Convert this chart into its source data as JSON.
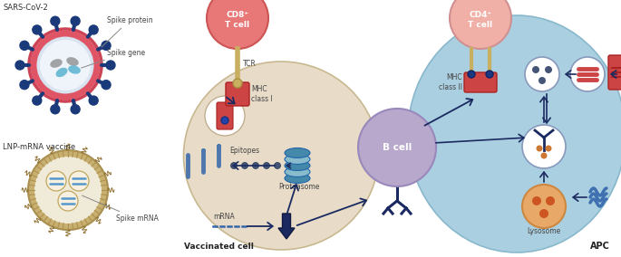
{
  "background_color": "#ffffff",
  "vaccinated_cell_color": "#e8dcc8",
  "vaccinated_cell_edge": "#c8b890",
  "apc_color": "#aacfe0",
  "apc_edge": "#88b8cc",
  "cd8_color": "#e87878",
  "cd8_edge": "#cc5555",
  "cd4_color": "#f0b0a8",
  "cd4_edge": "#d09090",
  "b_cell_color": "#b8a8cc",
  "b_cell_edge": "#9988bb",
  "lysosome_color": "#e8a868",
  "lysosome_edge": "#cc8840",
  "spike_color": "#1a3a80",
  "mrna_color": "#3366aa",
  "proteasome_color1": "#4488aa",
  "proteasome_color2": "#88bbcc",
  "red_protein_color": "#cc4444",
  "red_protein_edge": "#aa2222",
  "tcr_stalk_color": "#c8b060",
  "arrow_color": "#1a2a60",
  "blue_wave_color": "#3366aa",
  "labels": {
    "sars": "SARS-CoV-2",
    "spike_protein": "Spike protein",
    "spike_gene": "Spike gene",
    "lnp": "LNP-mRNA vaccine",
    "spike_mrna": "Spike mRNA",
    "cd8": "CD8⁺\nT cell",
    "cd4": "CD4⁺\nT cell",
    "tcr": "TCR",
    "mhc1": "MHC\nclass I",
    "mhc2": "MHC\nclass II",
    "bcell": "B cell",
    "epitopes": "Epitopes",
    "proteasome": "Proteasome",
    "mrna": "mRNA",
    "vaccinated": "Vaccinated cell",
    "lysosome": "Lysosome",
    "apc": "APC"
  }
}
